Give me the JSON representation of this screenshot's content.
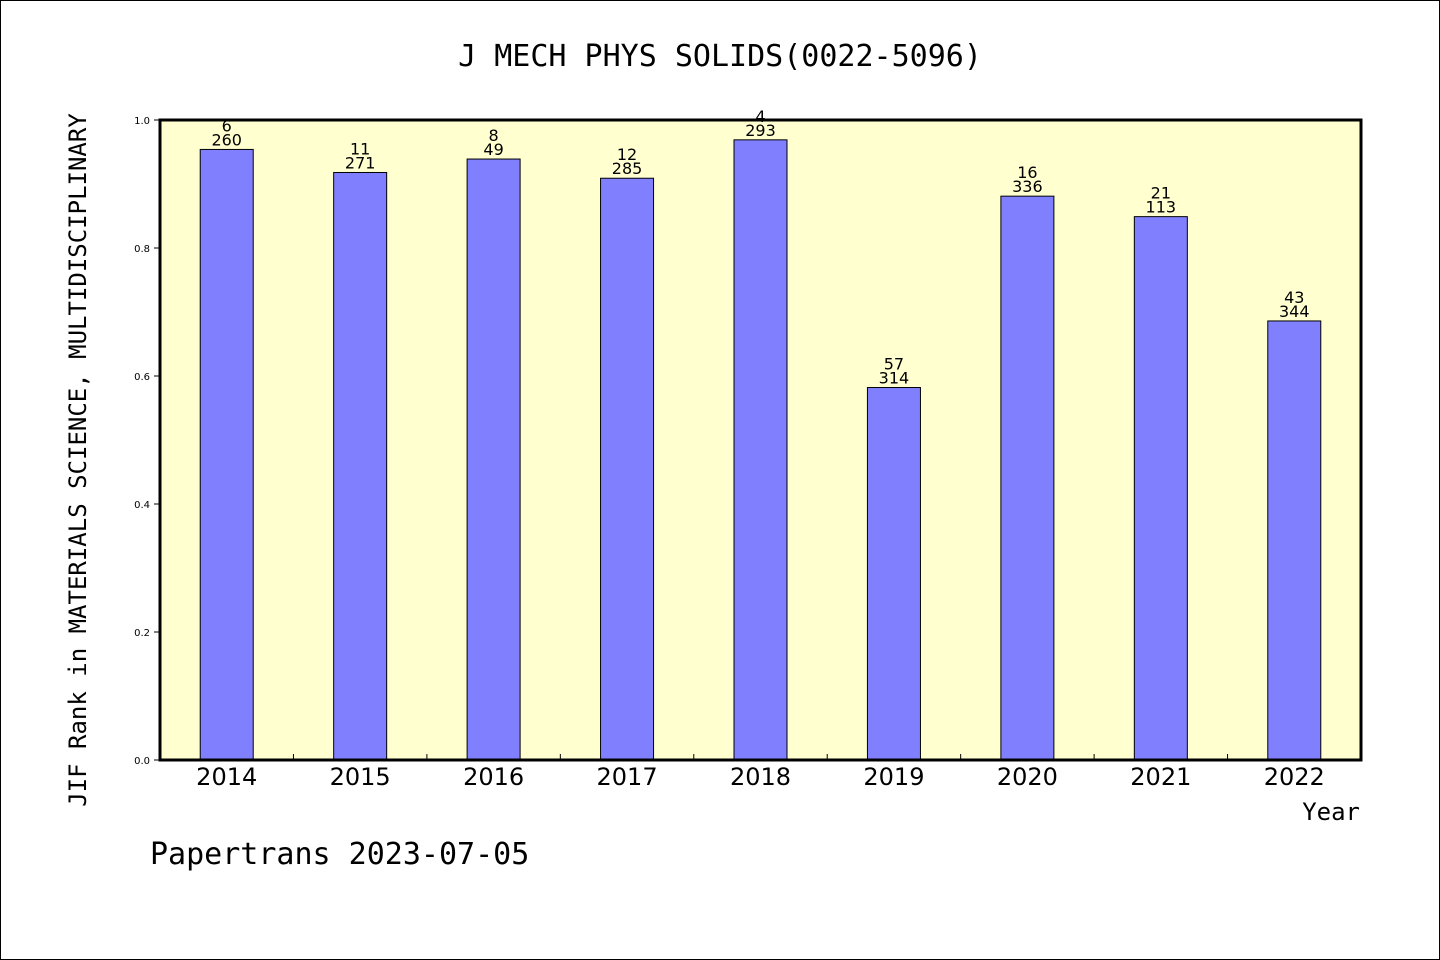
{
  "chart_data": {
    "type": "bar",
    "title": "J MECH PHYS SOLIDS(0022-5096)",
    "xlabel": "Year",
    "ylabel": "JIF Rank in MATERIALS SCIENCE, MULTIDISCIPLINARY",
    "categories": [
      "2014",
      "2015",
      "2016",
      "2017",
      "2018",
      "2019",
      "2020",
      "2021",
      "2022"
    ],
    "values": [
      0.954,
      0.918,
      0.939,
      0.909,
      0.969,
      0.582,
      0.881,
      0.849,
      0.686
    ],
    "rank": [
      "6",
      "11",
      "8",
      "12",
      "4",
      "57",
      "16",
      "21",
      "43"
    ],
    "total": [
      "260",
      "271",
      "49",
      "285",
      "293",
      "314",
      "336",
      "113",
      "344"
    ],
    "ylim": [
      0,
      1
    ],
    "yticks": [
      "0.0",
      "0.2",
      "0.4",
      "0.6",
      "0.8",
      "1.0"
    ],
    "grid": false,
    "colors": {
      "bar": "#8080ff",
      "plot_background": "#ffffd0"
    }
  },
  "footer": "Papertrans 2023-07-05"
}
